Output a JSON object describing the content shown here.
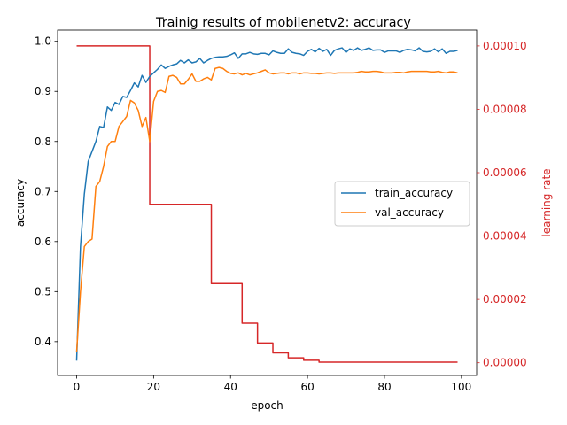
{
  "chart_data": {
    "type": "line",
    "title": "Trainig results of mobilenetv2: accuracy",
    "xlabel": "epoch",
    "ylabel": "accuracy",
    "y2label": "learning rate",
    "xlim": [
      -4.95,
      103.95
    ],
    "ylim": [
      0.3325,
      1.0225
    ],
    "y2lim": [
      -4e-06,
      0.000105
    ],
    "x_ticks": [
      0,
      20,
      40,
      60,
      80,
      100
    ],
    "x_tick_labels": [
      "0",
      "20",
      "40",
      "60",
      "80",
      "100"
    ],
    "y_ticks": [
      0.4,
      0.5,
      0.6,
      0.7,
      0.8,
      0.9,
      1.0
    ],
    "y_tick_labels": [
      "0.4",
      "0.5",
      "0.6",
      "0.7",
      "0.8",
      "0.9",
      "1.0"
    ],
    "y2_ticks": [
      0,
      2e-05,
      4e-05,
      6e-05,
      8e-05,
      0.0001
    ],
    "y2_tick_labels": [
      "0.00000",
      "0.00002",
      "0.00004",
      "0.00006",
      "0.00008",
      "0.00010"
    ],
    "grid": false,
    "legend_position": "center-right",
    "colors": {
      "train": "#1f77b4",
      "val": "#ff7f0e",
      "lr": "#d62728",
      "axis": "#000000"
    },
    "series": [
      {
        "name": "train_accuracy",
        "axis": "left",
        "color": "#1f77b4",
        "x": [
          0,
          1,
          2,
          3,
          4,
          5,
          6,
          7,
          8,
          9,
          10,
          11,
          12,
          13,
          14,
          15,
          16,
          17,
          18,
          19,
          20,
          21,
          22,
          23,
          24,
          25,
          26,
          27,
          28,
          29,
          30,
          31,
          32,
          33,
          34,
          35,
          36,
          37,
          38,
          39,
          40,
          41,
          42,
          43,
          44,
          45,
          46,
          47,
          48,
          49,
          50,
          51,
          52,
          53,
          54,
          55,
          56,
          57,
          58,
          59,
          60,
          61,
          62,
          63,
          64,
          65,
          66,
          67,
          68,
          69,
          70,
          71,
          72,
          73,
          74,
          75,
          76,
          77,
          78,
          79,
          80,
          81,
          82,
          83,
          84,
          85,
          86,
          87,
          88,
          89,
          90,
          91,
          92,
          93,
          94,
          95,
          96,
          97,
          98,
          99
        ],
        "values": [
          0.362,
          0.59,
          0.695,
          0.76,
          0.78,
          0.8,
          0.83,
          0.828,
          0.869,
          0.862,
          0.878,
          0.874,
          0.89,
          0.888,
          0.902,
          0.917,
          0.909,
          0.932,
          0.918,
          0.93,
          0.937,
          0.944,
          0.953,
          0.946,
          0.95,
          0.953,
          0.955,
          0.962,
          0.957,
          0.963,
          0.957,
          0.959,
          0.966,
          0.957,
          0.962,
          0.966,
          0.968,
          0.969,
          0.969,
          0.97,
          0.973,
          0.977,
          0.966,
          0.975,
          0.975,
          0.978,
          0.975,
          0.974,
          0.976,
          0.976,
          0.973,
          0.981,
          0.978,
          0.976,
          0.976,
          0.985,
          0.978,
          0.976,
          0.975,
          0.972,
          0.98,
          0.984,
          0.979,
          0.986,
          0.98,
          0.984,
          0.972,
          0.982,
          0.985,
          0.987,
          0.978,
          0.985,
          0.982,
          0.987,
          0.982,
          0.984,
          0.987,
          0.982,
          0.983,
          0.983,
          0.978,
          0.981,
          0.981,
          0.981,
          0.978,
          0.982,
          0.984,
          0.983,
          0.981,
          0.987,
          0.98,
          0.979,
          0.98,
          0.985,
          0.979,
          0.985,
          0.976,
          0.98,
          0.98,
          0.982
        ]
      },
      {
        "name": "val_accuracy",
        "axis": "left",
        "color": "#ff7f0e",
        "x": [
          0,
          1,
          2,
          3,
          4,
          5,
          6,
          7,
          8,
          9,
          10,
          11,
          12,
          13,
          14,
          15,
          16,
          17,
          18,
          19,
          20,
          21,
          22,
          23,
          24,
          25,
          26,
          27,
          28,
          29,
          30,
          31,
          32,
          33,
          34,
          35,
          36,
          37,
          38,
          39,
          40,
          41,
          42,
          43,
          44,
          45,
          46,
          47,
          48,
          49,
          50,
          51,
          52,
          53,
          54,
          55,
          56,
          57,
          58,
          59,
          60,
          61,
          62,
          63,
          64,
          65,
          66,
          67,
          68,
          69,
          70,
          71,
          72,
          73,
          74,
          75,
          76,
          77,
          78,
          79,
          80,
          81,
          82,
          83,
          84,
          85,
          86,
          87,
          88,
          89,
          90,
          91,
          92,
          93,
          94,
          95,
          96,
          97,
          98,
          99
        ],
        "values": [
          0.38,
          0.5,
          0.59,
          0.6,
          0.605,
          0.71,
          0.72,
          0.75,
          0.79,
          0.8,
          0.8,
          0.83,
          0.84,
          0.85,
          0.882,
          0.877,
          0.862,
          0.83,
          0.848,
          0.8,
          0.88,
          0.9,
          0.902,
          0.898,
          0.93,
          0.932,
          0.928,
          0.915,
          0.915,
          0.924,
          0.935,
          0.92,
          0.92,
          0.925,
          0.928,
          0.923,
          0.946,
          0.948,
          0.946,
          0.94,
          0.936,
          0.935,
          0.937,
          0.933,
          0.936,
          0.933,
          0.935,
          0.937,
          0.94,
          0.943,
          0.937,
          0.935,
          0.936,
          0.937,
          0.937,
          0.935,
          0.937,
          0.937,
          0.935,
          0.937,
          0.937,
          0.936,
          0.936,
          0.935,
          0.936,
          0.937,
          0.937,
          0.936,
          0.937,
          0.937,
          0.937,
          0.937,
          0.937,
          0.938,
          0.94,
          0.939,
          0.939,
          0.94,
          0.94,
          0.939,
          0.937,
          0.937,
          0.937,
          0.938,
          0.938,
          0.937,
          0.939,
          0.94,
          0.94,
          0.94,
          0.94,
          0.94,
          0.939,
          0.939,
          0.94,
          0.938,
          0.937,
          0.939,
          0.939,
          0.937
        ]
      },
      {
        "name": "learning rate",
        "axis": "right",
        "color": "#d62728",
        "x": [
          0,
          19,
          19,
          20,
          35,
          35,
          36,
          43,
          43,
          44,
          47,
          47,
          48,
          51,
          51,
          52,
          55,
          55,
          56,
          59,
          59,
          60,
          63,
          63,
          64,
          99
        ],
        "values": [
          0.0001,
          0.0001,
          5e-05,
          5e-05,
          5e-05,
          2.5e-05,
          2.5e-05,
          2.5e-05,
          1.25e-05,
          1.25e-05,
          1.25e-05,
          6.25e-06,
          6.25e-06,
          6.25e-06,
          3.125e-06,
          3.125e-06,
          3.125e-06,
          1.5625e-06,
          1.5625e-06,
          1.5625e-06,
          7.8e-07,
          7.8e-07,
          7.8e-07,
          2e-07,
          2e-07,
          2e-07
        ]
      }
    ]
  }
}
